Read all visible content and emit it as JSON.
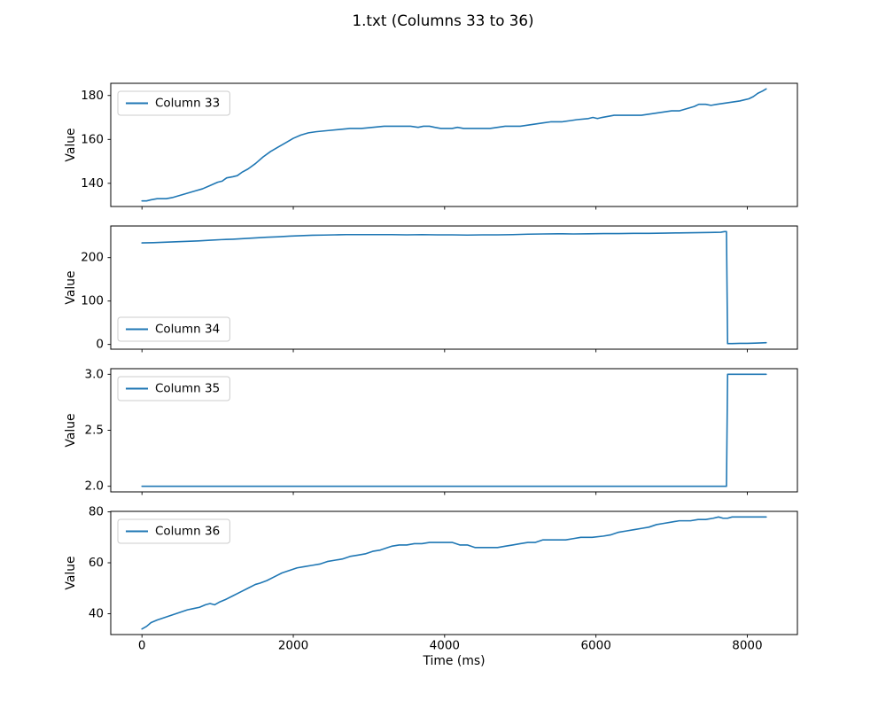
{
  "chart_data": {
    "type": "line",
    "title": "1.txt (Columns 33 to 36)",
    "xlabel": "Time (ms)",
    "x_ticks": [
      0,
      2000,
      4000,
      6000,
      8000
    ],
    "xlim": [
      -412.5,
      8662.5
    ],
    "grid": false,
    "line_color": "#1f77b4",
    "spine_color": "#000000",
    "legend_border_color": "#cccccc",
    "subplots": [
      {
        "legend": "Column 33",
        "ylabel": "Value",
        "legend_loc": "upper left",
        "y_ticks": [
          140,
          160,
          180
        ],
        "y_tick_labels": [
          "140",
          "160",
          "180"
        ],
        "ylim": [
          129.45,
          185.55
        ],
        "points": [
          [
            0,
            132
          ],
          [
            60,
            132
          ],
          [
            120,
            132.5
          ],
          [
            200,
            133
          ],
          [
            320,
            133
          ],
          [
            400,
            133.5
          ],
          [
            500,
            134.5
          ],
          [
            600,
            135.5
          ],
          [
            700,
            136.5
          ],
          [
            800,
            137.5
          ],
          [
            900,
            139
          ],
          [
            1000,
            140.5
          ],
          [
            1060,
            141
          ],
          [
            1120,
            142.5
          ],
          [
            1200,
            143
          ],
          [
            1260,
            143.5
          ],
          [
            1320,
            145
          ],
          [
            1400,
            146.5
          ],
          [
            1500,
            149
          ],
          [
            1600,
            152
          ],
          [
            1700,
            154.5
          ],
          [
            1800,
            156.5
          ],
          [
            1900,
            158.5
          ],
          [
            2000,
            160.5
          ],
          [
            2100,
            162
          ],
          [
            2200,
            163
          ],
          [
            2300,
            163.5
          ],
          [
            2450,
            164
          ],
          [
            2600,
            164.5
          ],
          [
            2750,
            165
          ],
          [
            2900,
            165
          ],
          [
            3050,
            165.5
          ],
          [
            3200,
            166
          ],
          [
            3400,
            166
          ],
          [
            3550,
            166
          ],
          [
            3650,
            165.5
          ],
          [
            3720,
            166
          ],
          [
            3800,
            166
          ],
          [
            3870,
            165.5
          ],
          [
            3950,
            165
          ],
          [
            4100,
            165
          ],
          [
            4170,
            165.5
          ],
          [
            4250,
            165
          ],
          [
            4400,
            165
          ],
          [
            4600,
            165
          ],
          [
            4700,
            165.5
          ],
          [
            4800,
            166
          ],
          [
            5000,
            166
          ],
          [
            5100,
            166.5
          ],
          [
            5200,
            167
          ],
          [
            5300,
            167.5
          ],
          [
            5400,
            168
          ],
          [
            5550,
            168
          ],
          [
            5650,
            168.5
          ],
          [
            5750,
            169
          ],
          [
            5900,
            169.5
          ],
          [
            5960,
            170
          ],
          [
            6020,
            169.5
          ],
          [
            6080,
            170
          ],
          [
            6160,
            170.5
          ],
          [
            6240,
            171
          ],
          [
            6400,
            171
          ],
          [
            6600,
            171
          ],
          [
            6700,
            171.5
          ],
          [
            6800,
            172
          ],
          [
            6900,
            172.5
          ],
          [
            7000,
            173
          ],
          [
            7100,
            173
          ],
          [
            7200,
            174
          ],
          [
            7300,
            175
          ],
          [
            7360,
            176
          ],
          [
            7450,
            176
          ],
          [
            7520,
            175.5
          ],
          [
            7600,
            176
          ],
          [
            7700,
            176.5
          ],
          [
            7800,
            177
          ],
          [
            7900,
            177.5
          ],
          [
            7960,
            178
          ],
          [
            8020,
            178.5
          ],
          [
            8080,
            179.5
          ],
          [
            8140,
            181
          ],
          [
            8200,
            182
          ],
          [
            8250,
            183
          ]
        ]
      },
      {
        "legend": "Column 34",
        "ylabel": "Value",
        "legend_loc": "lower left",
        "y_ticks": [
          0,
          100,
          200
        ],
        "y_tick_labels": [
          "0",
          "100",
          "200"
        ],
        "ylim": [
          -10.9,
          272.9
        ],
        "points": [
          [
            0,
            234
          ],
          [
            150,
            234.5
          ],
          [
            300,
            235.5
          ],
          [
            450,
            236.5
          ],
          [
            600,
            237.5
          ],
          [
            750,
            238.5
          ],
          [
            900,
            240
          ],
          [
            1050,
            241.5
          ],
          [
            1200,
            242.5
          ],
          [
            1350,
            244
          ],
          [
            1500,
            245.5
          ],
          [
            1650,
            247
          ],
          [
            1800,
            248
          ],
          [
            1950,
            249.5
          ],
          [
            2100,
            250.5
          ],
          [
            2250,
            251.5
          ],
          [
            2400,
            252
          ],
          [
            2550,
            252.5
          ],
          [
            2700,
            253
          ],
          [
            2900,
            253
          ],
          [
            3100,
            253
          ],
          [
            3300,
            253
          ],
          [
            3500,
            252.5
          ],
          [
            3700,
            253
          ],
          [
            3900,
            252.5
          ],
          [
            4100,
            252.5
          ],
          [
            4300,
            252
          ],
          [
            4500,
            252.5
          ],
          [
            4700,
            252.5
          ],
          [
            4900,
            253
          ],
          [
            5100,
            254
          ],
          [
            5300,
            254.5
          ],
          [
            5500,
            255
          ],
          [
            5700,
            254.5
          ],
          [
            5900,
            255
          ],
          [
            6100,
            255.5
          ],
          [
            6300,
            255.5
          ],
          [
            6500,
            256
          ],
          [
            6700,
            256
          ],
          [
            6900,
            256.5
          ],
          [
            7100,
            257
          ],
          [
            7300,
            257.5
          ],
          [
            7500,
            258
          ],
          [
            7650,
            258.5
          ],
          [
            7700,
            260
          ],
          [
            7725,
            260
          ],
          [
            7740,
            2
          ],
          [
            7800,
            2
          ],
          [
            7900,
            2.5
          ],
          [
            8000,
            2.5
          ],
          [
            8100,
            3
          ],
          [
            8180,
            3.5
          ],
          [
            8250,
            4
          ]
        ]
      },
      {
        "legend": "Column 35",
        "ylabel": "Value",
        "legend_loc": "upper left",
        "y_ticks": [
          2.0,
          2.5,
          3.0
        ],
        "y_tick_labels": [
          "2.0",
          "2.5",
          "3.0"
        ],
        "ylim": [
          1.95,
          3.05
        ],
        "points": [
          [
            0,
            2
          ],
          [
            7725,
            2
          ],
          [
            7740,
            3
          ],
          [
            8250,
            3
          ]
        ]
      },
      {
        "legend": "Column 36",
        "ylabel": "Value",
        "legend_loc": "upper left",
        "y_ticks": [
          40,
          60,
          80
        ],
        "y_tick_labels": [
          "40",
          "60",
          "80"
        ],
        "ylim": [
          31.8,
          80.2
        ],
        "points": [
          [
            0,
            34
          ],
          [
            60,
            35
          ],
          [
            120,
            36.5
          ],
          [
            200,
            37.5
          ],
          [
            300,
            38.5
          ],
          [
            400,
            39.5
          ],
          [
            500,
            40.5
          ],
          [
            600,
            41.5
          ],
          [
            680,
            42
          ],
          [
            760,
            42.5
          ],
          [
            840,
            43.5
          ],
          [
            900,
            44
          ],
          [
            960,
            43.5
          ],
          [
            1020,
            44.5
          ],
          [
            1100,
            45.5
          ],
          [
            1200,
            47
          ],
          [
            1300,
            48.5
          ],
          [
            1400,
            50
          ],
          [
            1500,
            51.5
          ],
          [
            1560,
            52
          ],
          [
            1650,
            53
          ],
          [
            1750,
            54.5
          ],
          [
            1850,
            56
          ],
          [
            1950,
            57
          ],
          [
            2050,
            58
          ],
          [
            2150,
            58.5
          ],
          [
            2250,
            59
          ],
          [
            2350,
            59.5
          ],
          [
            2450,
            60.5
          ],
          [
            2550,
            61
          ],
          [
            2650,
            61.5
          ],
          [
            2750,
            62.5
          ],
          [
            2850,
            63
          ],
          [
            2950,
            63.5
          ],
          [
            3050,
            64.5
          ],
          [
            3150,
            65
          ],
          [
            3250,
            66
          ],
          [
            3300,
            66.5
          ],
          [
            3400,
            67
          ],
          [
            3500,
            67
          ],
          [
            3600,
            67.5
          ],
          [
            3700,
            67.5
          ],
          [
            3800,
            68
          ],
          [
            3950,
            68
          ],
          [
            4100,
            68
          ],
          [
            4200,
            67
          ],
          [
            4300,
            67
          ],
          [
            4400,
            66
          ],
          [
            4550,
            66
          ],
          [
            4700,
            66
          ],
          [
            4800,
            66.5
          ],
          [
            4900,
            67
          ],
          [
            5000,
            67.5
          ],
          [
            5100,
            68
          ],
          [
            5200,
            68
          ],
          [
            5300,
            69
          ],
          [
            5450,
            69
          ],
          [
            5600,
            69
          ],
          [
            5700,
            69.5
          ],
          [
            5800,
            70
          ],
          [
            5950,
            70
          ],
          [
            6100,
            70.5
          ],
          [
            6200,
            71
          ],
          [
            6300,
            72
          ],
          [
            6400,
            72.5
          ],
          [
            6500,
            73
          ],
          [
            6600,
            73.5
          ],
          [
            6700,
            74
          ],
          [
            6800,
            75
          ],
          [
            6900,
            75.5
          ],
          [
            7000,
            76
          ],
          [
            7100,
            76.5
          ],
          [
            7250,
            76.5
          ],
          [
            7350,
            77
          ],
          [
            7450,
            77
          ],
          [
            7550,
            77.5
          ],
          [
            7620,
            78
          ],
          [
            7680,
            77.5
          ],
          [
            7740,
            77.5
          ],
          [
            7800,
            78
          ],
          [
            7900,
            78
          ],
          [
            8050,
            78
          ],
          [
            8150,
            78
          ],
          [
            8250,
            78
          ]
        ]
      }
    ]
  }
}
